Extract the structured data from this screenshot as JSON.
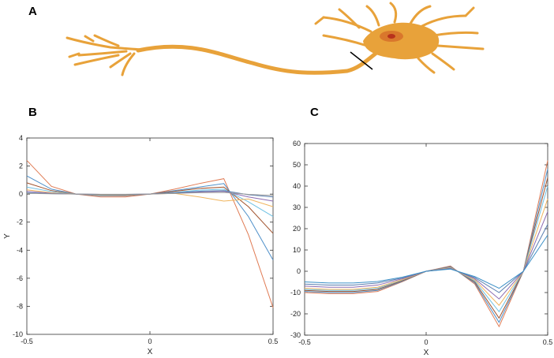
{
  "panels": {
    "a": "A",
    "b": "B",
    "c": "C"
  },
  "chart_data": [
    {
      "panel": "B",
      "type": "line",
      "xlabel": "X",
      "ylabel": "Y",
      "xlim": [
        -0.5,
        0.5
      ],
      "ylim": [
        -10,
        4
      ],
      "xticks": [
        "-0.5",
        "0",
        "0.5"
      ],
      "yticks": [
        "4",
        "2",
        "0",
        "-2",
        "-4",
        "-6",
        "-8",
        "-10"
      ],
      "x": [
        -0.5,
        -0.4,
        -0.3,
        -0.2,
        -0.1,
        0,
        0.1,
        0.2,
        0.3,
        0.4,
        0.5
      ],
      "series": [
        {
          "color": "#e07b54",
          "values": [
            2.4,
            0.55,
            0.0,
            -0.2,
            -0.2,
            0.0,
            0.35,
            0.75,
            1.1,
            -2.9,
            -8.1
          ]
        },
        {
          "color": "#4d8fc9",
          "values": [
            1.3,
            0.35,
            0.0,
            -0.12,
            -0.12,
            0.0,
            0.25,
            0.5,
            0.75,
            -1.6,
            -4.7
          ]
        },
        {
          "color": "#a0522d",
          "values": [
            0.8,
            0.25,
            0.0,
            -0.08,
            -0.1,
            0.0,
            0.2,
            0.4,
            0.5,
            -0.9,
            -2.8
          ]
        },
        {
          "color": "#6ec1e4",
          "values": [
            0.5,
            0.18,
            0.0,
            -0.06,
            -0.06,
            0.0,
            0.12,
            0.28,
            0.35,
            -0.55,
            -1.6
          ]
        },
        {
          "color": "#f0b45c",
          "values": [
            0.3,
            0.1,
            0.0,
            -0.04,
            -0.04,
            0.0,
            0.05,
            -0.2,
            -0.5,
            -0.35,
            -0.9
          ]
        },
        {
          "color": "#8c6bb1",
          "values": [
            0.2,
            0.06,
            0.0,
            -0.02,
            -0.03,
            0.0,
            0.08,
            0.15,
            0.2,
            -0.2,
            -0.5
          ]
        },
        {
          "color": "#5b7fb0",
          "values": [
            0.1,
            0.03,
            0.0,
            -0.02,
            -0.02,
            0.0,
            0.1,
            0.2,
            0.25,
            -0.05,
            -0.2
          ]
        },
        {
          "color": "#999999",
          "values": [
            0.05,
            0.02,
            0.0,
            -0.01,
            -0.01,
            0.0,
            0.05,
            0.1,
            0.12,
            -0.02,
            -0.1
          ]
        }
      ]
    },
    {
      "panel": "C",
      "type": "line",
      "xlabel": "X",
      "ylabel": "",
      "xlim": [
        -0.5,
        0.5
      ],
      "ylim": [
        -30,
        60
      ],
      "xticks": [
        "-0.5",
        "0",
        "0.5"
      ],
      "yticks": [
        "60",
        "50",
        "40",
        "30",
        "20",
        "10",
        "0",
        "-10",
        "-20",
        "-30"
      ],
      "x": [
        -0.5,
        -0.4,
        -0.3,
        -0.2,
        -0.1,
        0,
        0.1,
        0.2,
        0.3,
        0.4,
        0.5
      ],
      "series": [
        {
          "color": "#e07b54",
          "values": [
            -10,
            -10.5,
            -10.5,
            -9.5,
            -5,
            0,
            2.5,
            -6,
            -26,
            0,
            52
          ]
        },
        {
          "color": "#4d8fc9",
          "values": [
            -9.5,
            -10,
            -10,
            -9,
            -4.8,
            0,
            2.2,
            -5.5,
            -24,
            0,
            48
          ]
        },
        {
          "color": "#a0522d",
          "values": [
            -9,
            -9.5,
            -9.5,
            -8.5,
            -4.5,
            0,
            2.0,
            -5.0,
            -22,
            0,
            44
          ]
        },
        {
          "color": "#6ec1e4",
          "values": [
            -8.5,
            -9,
            -9,
            -8,
            -4.2,
            0,
            1.8,
            -4.5,
            -19,
            0,
            40
          ]
        },
        {
          "color": "#f0b45c",
          "values": [
            -8,
            -8.5,
            -8.5,
            -7.5,
            -4,
            0,
            1.6,
            -4,
            -16,
            0,
            34
          ]
        },
        {
          "color": "#8c6bb1",
          "values": [
            -7,
            -7.5,
            -7.5,
            -6.5,
            -3.6,
            0,
            1.4,
            -3.5,
            -13,
            0,
            28
          ]
        },
        {
          "color": "#5b7fb0",
          "values": [
            -6,
            -6.5,
            -6.5,
            -5.5,
            -3.2,
            0,
            1.2,
            -3,
            -10,
            0,
            22
          ]
        },
        {
          "color": "#3b8fc6",
          "values": [
            -5,
            -5.5,
            -5.5,
            -4.8,
            -2.8,
            0,
            1.0,
            -2.5,
            -8,
            0,
            17
          ]
        }
      ]
    }
  ]
}
